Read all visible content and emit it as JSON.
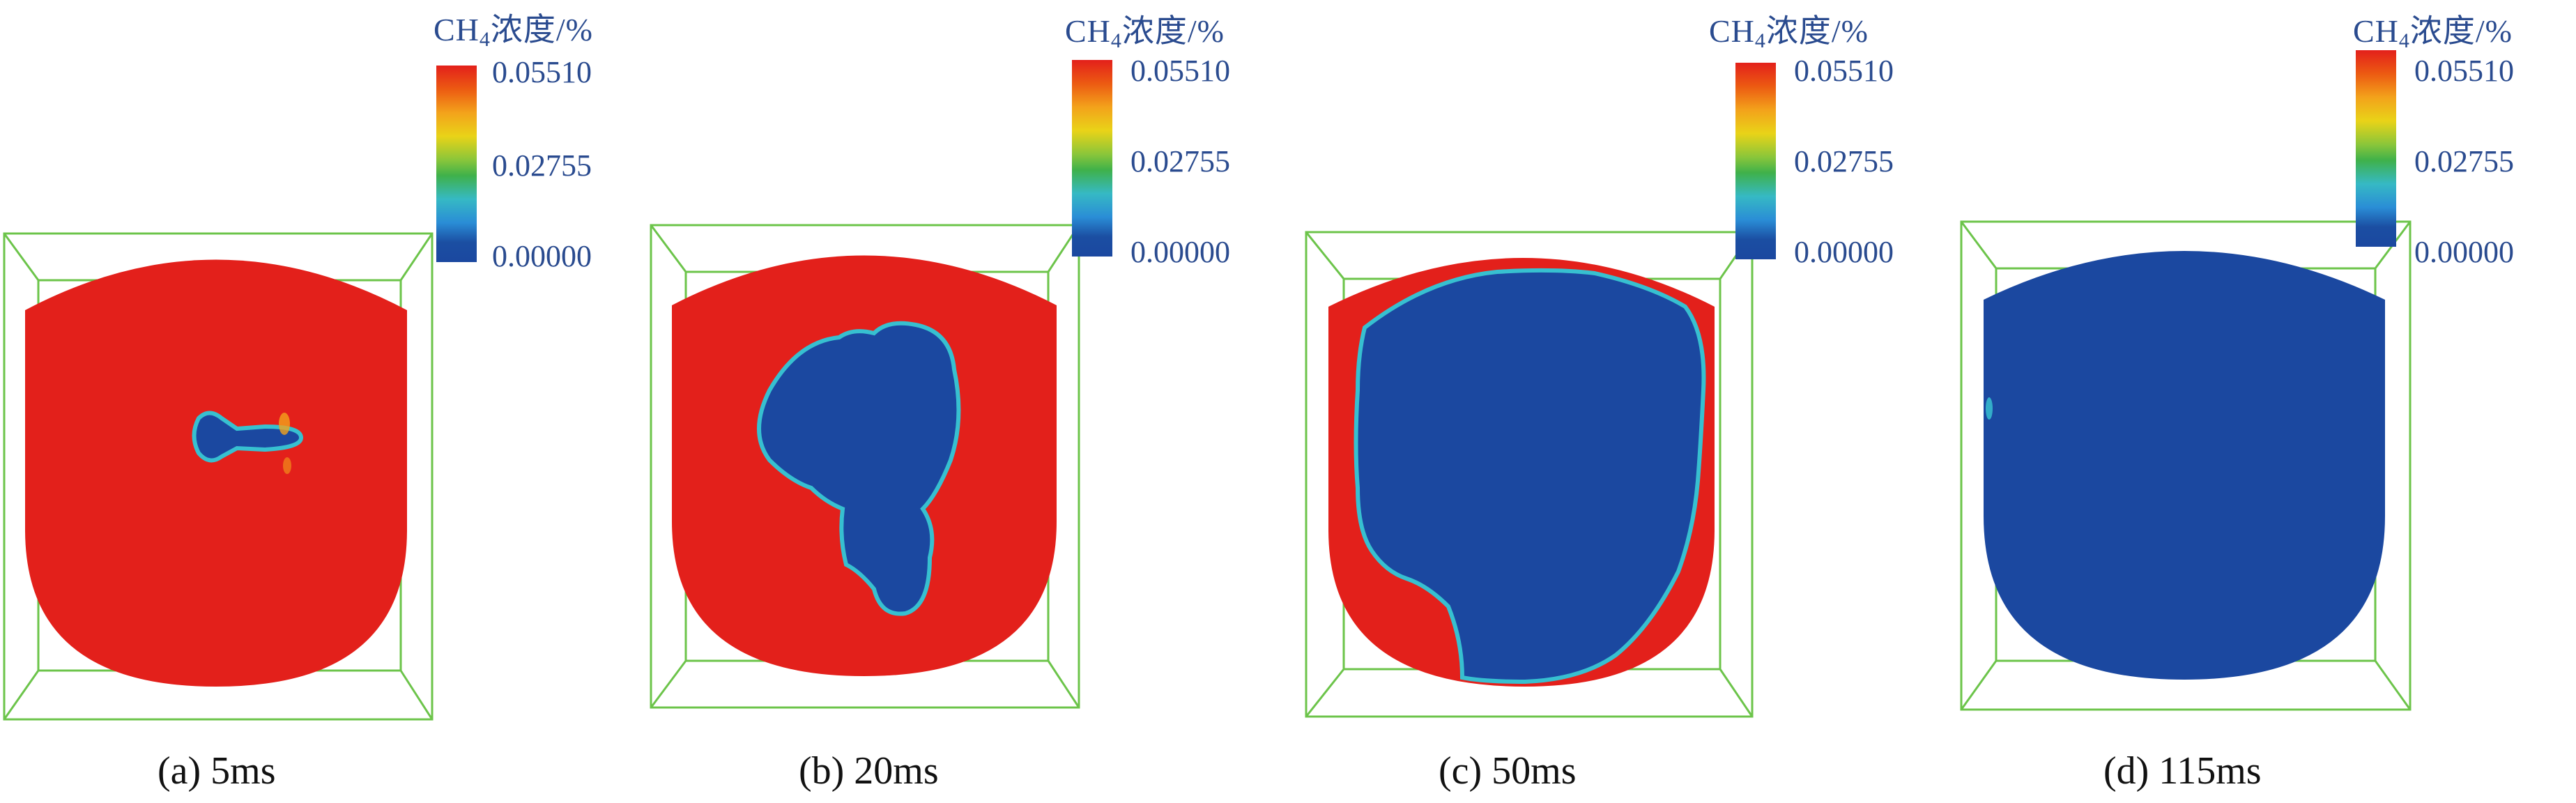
{
  "legend": {
    "title_prefix": "CH",
    "title_sub": "4",
    "title_suffix": "浓度/%",
    "ticks": [
      "0.05510",
      "0.02755",
      "0.00000"
    ]
  },
  "colors": {
    "high": "#e3201b",
    "low": "#1b48a0",
    "interface": "#37c0d0",
    "frame": "#6cc44a"
  },
  "panels": [
    {
      "caption": "(a) 5ms"
    },
    {
      "caption": "(b) 20ms"
    },
    {
      "caption": "(c) 50ms"
    },
    {
      "caption": "(d) 115ms"
    }
  ]
}
